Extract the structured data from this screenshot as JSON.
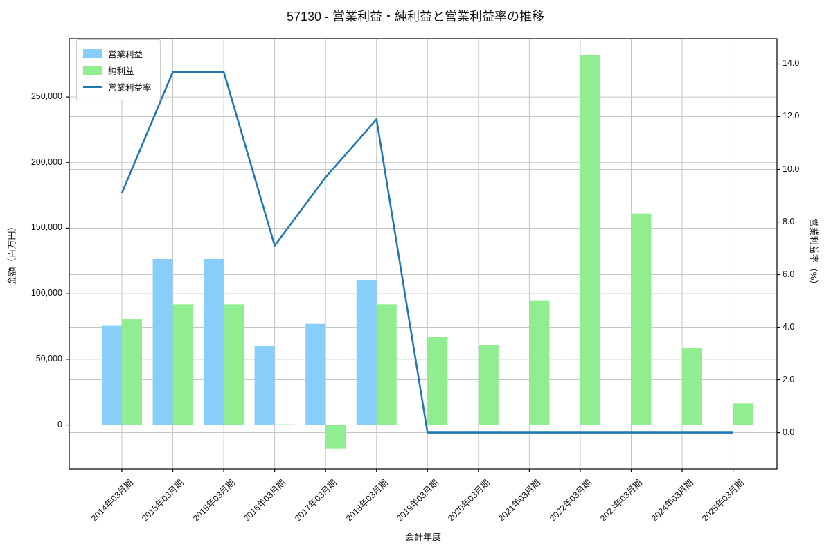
{
  "title": "57130 - 営業利益・純利益と営業利益率の推移",
  "chart_data": {
    "type": "bar",
    "subtype": "grouped bars with overlay line (dual axis)",
    "categories": [
      "2014年03月期",
      "2015年03月期",
      "2015年03月期",
      "2016年03月期",
      "2017年03月期",
      "2018年03月期",
      "2019年03月期",
      "2020年03月期",
      "2021年03月期",
      "2022年03月期",
      "2023年03月期",
      "2024年03月期",
      "2025年03月期"
    ],
    "series": [
      {
        "name": "営業利益",
        "type": "bar",
        "axis": "left",
        "color": "#87CEFA",
        "values": [
          75500,
          126500,
          126500,
          60000,
          77000,
          110500,
          null,
          null,
          null,
          null,
          null,
          null,
          null
        ]
      },
      {
        "name": "純利益",
        "type": "bar",
        "axis": "left",
        "color": "#90EE90",
        "values": [
          80500,
          92000,
          92000,
          500,
          -18000,
          92000,
          67000,
          61000,
          95000,
          282000,
          161000,
          58500,
          16500
        ]
      },
      {
        "name": "営業利益率",
        "type": "line",
        "axis": "right",
        "color": "#1f77b4",
        "values": [
          9.1,
          13.7,
          13.7,
          7.1,
          9.7,
          11.9,
          0.0,
          0.0,
          0.0,
          0.0,
          0.0,
          0.0,
          0.0
        ]
      }
    ],
    "xlabel": "会計年度",
    "ylabel_left": "金額（百万円）",
    "ylabel_right": "営業利益率（%）",
    "left_axis": {
      "min": -33500,
      "max": 294400,
      "ticks": [
        0,
        50000,
        100000,
        150000,
        200000,
        250000
      ],
      "tick_labels": [
        "0",
        "50,000",
        "100,000",
        "150,000",
        "200,000",
        "250,000"
      ]
    },
    "right_axis": {
      "min": -1.38,
      "max": 14.96,
      "ticks": [
        0,
        2,
        4,
        6,
        8,
        10,
        12,
        14
      ],
      "tick_labels": [
        "0.0",
        "2.0",
        "4.0",
        "6.0",
        "8.0",
        "10.0",
        "12.0",
        "14.0"
      ]
    },
    "grid": true,
    "legend_position": "upper-left",
    "colors": {
      "grid": "#c6c6c6",
      "spine": "#000000",
      "background": "#ffffff"
    }
  }
}
